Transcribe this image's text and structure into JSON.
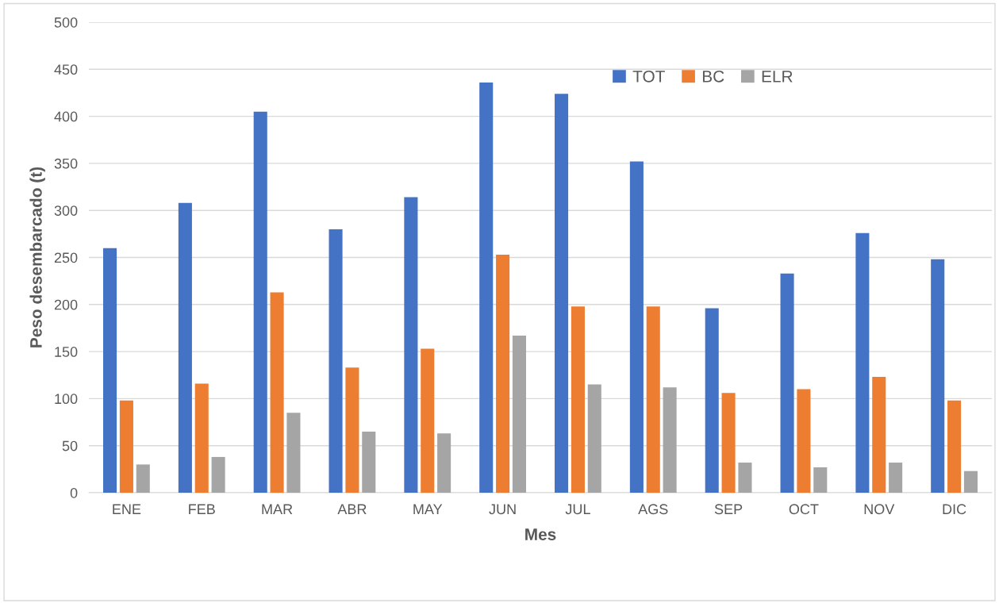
{
  "chart_data": {
    "type": "bar",
    "xlabel": "Mes",
    "ylabel": "Peso desembarcado (t)",
    "categories": [
      "ENE",
      "FEB",
      "MAR",
      "ABR",
      "MAY",
      "JUN",
      "JUL",
      "AGS",
      "SEP",
      "OCT",
      "NOV",
      "DIC"
    ],
    "series": [
      {
        "name": "TOT",
        "color": "#4472c4",
        "values": [
          260,
          308,
          405,
          280,
          314,
          436,
          424,
          352,
          196,
          233,
          276,
          248
        ]
      },
      {
        "name": "BC",
        "color": "#ed7d31",
        "values": [
          98,
          116,
          213,
          133,
          153,
          253,
          198,
          198,
          106,
          110,
          123,
          98
        ]
      },
      {
        "name": "ELR",
        "color": "#a5a5a5",
        "values": [
          30,
          38,
          85,
          65,
          63,
          167,
          115,
          112,
          32,
          27,
          32,
          23
        ]
      }
    ],
    "ylim": [
      0,
      500
    ],
    "yticks": [
      0,
      50,
      100,
      150,
      200,
      250,
      300,
      350,
      400,
      450,
      500
    ],
    "grid": "y",
    "legend": "top right"
  }
}
